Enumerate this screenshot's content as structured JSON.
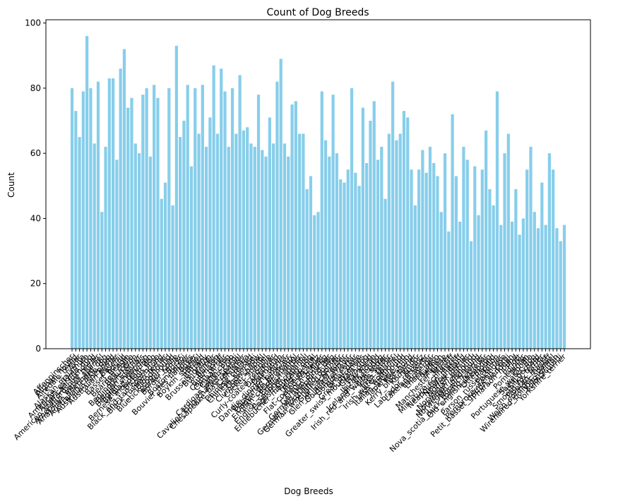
{
  "chart_data": {
    "type": "bar",
    "title": "Count of Dog Breeds",
    "x_label": "Dog Breeds",
    "y_label": "Count",
    "color": "#87ceeb",
    "categories": [
      "Affenpinscher",
      "Afghan_hound",
      "Airedale_terrier",
      "Akita",
      "Alaskan_malamute",
      "American_eskimo_dog",
      "American_foxhound",
      "American_staffordshire_terrier",
      "American_water_spaniel",
      "Anatolian_shepherd_dog",
      "Australian_cattle_dog",
      "Australian_shepherd",
      "Australian_terrier",
      "Basenji",
      "Basset_hound",
      "Beagle",
      "Bearded_collie",
      "Beauceron",
      "Bedlington_terrier",
      "Belgian_malinois",
      "Belgian_sheepdog",
      "Belgian_tervuren",
      "Bernese_mountain_dog",
      "Bichon_frise",
      "Black_and_tan_coonhound",
      "Black_russian_terrier",
      "Bloodhound",
      "Bluetick_coonhound",
      "Border_collie",
      "Border_terrier",
      "Borzoi",
      "Boston_terrier",
      "Bouvier_des_flandres",
      "Boxer",
      "Boykin_spaniel",
      "Briard",
      "Brittany",
      "Brussels_griffon",
      "Bull_terrier",
      "Bulldog",
      "Bullmastiff",
      "Cairn_terrier",
      "Canaan_dog",
      "Cane_corso",
      "Cardigan_welsh_corgi",
      "Cavalier_king_charles_spaniel",
      "Chesapeake_bay_retriever",
      "Chihuahua",
      "Chinese_crested",
      "Chinese_shar-pei",
      "Chow_chow",
      "Clumber_spaniel",
      "Cocker_spaniel",
      "Collie",
      "Curly-coated_retriever",
      "Dachshund",
      "Dalmatian",
      "Dandie_dinmont_terrier",
      "Doberman_pinscher",
      "Dogue_de_bordeaux",
      "English_cocker_spaniel",
      "English_setter",
      "English_springer_spaniel",
      "English_toy_spaniel",
      "Entlebucher_mountain_dog",
      "Field_spaniel",
      "Finnish_spitz",
      "Flat-coated_retriever",
      "French_bulldog",
      "German_pinscher",
      "German_shepherd_dog",
      "German_shorthaired_pointer",
      "German_wirehaired_pointer",
      "Giant_schnauzer",
      "Glen_of_imaal_terrier",
      "Golden_retriever",
      "Gordon_setter",
      "Great_dane",
      "Great_pyrenees",
      "Greater_swiss_mountain_dog",
      "Greyhound",
      "Havanese",
      "Ibizan_hound",
      "Icelandic_sheepdog",
      "Irish_red_and_white_setter",
      "Irish_setter",
      "Irish_terrier",
      "Irish_water_spaniel",
      "Irish_wolfhound",
      "Italian_greyhound",
      "Japanese_chin",
      "Keeshond",
      "Kerry_blue_terrier",
      "Komondor",
      "Kuvasz",
      "Labrador_retriever",
      "Lakeland_terrier",
      "Leonberger",
      "Lhasa_apso",
      "Lowchen",
      "Maltese",
      "Manchester_terrier",
      "Mastiff",
      "Miniature_schnauzer",
      "Neapolitan_mastiff",
      "Newfoundland",
      "Norfolk_terrier",
      "Norwegian_buhund",
      "Norwegian_elkhound",
      "Norwegian_lundehund",
      "Norwich_terrier",
      "Nova_scotia_duck_tolling_retriever",
      "Old_english_sheepdog",
      "Otterhound",
      "Papillon",
      "Parson_russell_terrier",
      "Pekingese",
      "Pembroke_welsh_corgi",
      "Petit_basset_griffon_vendeen",
      "Pharaoh_hound",
      "Plott",
      "Pointer",
      "Pomeranian",
      "Poodle",
      "Portuguese_water_dog",
      "Saint_bernard",
      "Silky_terrier",
      "Smooth_fox_terrier",
      "Tibetan_mastiff",
      "Welsh_springer_spaniel",
      "Wirehaired_pointing_griffon",
      "Xoloitzcuintli",
      "Yorkshire_terrier"
    ],
    "values": [
      80,
      73,
      65,
      79,
      96,
      80,
      63,
      82,
      42,
      62,
      83,
      83,
      58,
      86,
      92,
      74,
      77,
      63,
      60,
      78,
      80,
      59,
      81,
      77,
      46,
      51,
      80,
      44,
      93,
      65,
      70,
      81,
      56,
      80,
      66,
      81,
      62,
      71,
      87,
      66,
      86,
      79,
      62,
      80,
      66,
      84,
      67,
      68,
      63,
      62,
      78,
      61,
      59,
      71,
      63,
      82,
      89,
      63,
      59,
      75,
      76,
      66,
      66,
      49,
      53,
      41,
      42,
      79,
      64,
      59,
      78,
      60,
      52,
      51,
      55,
      80,
      54,
      50,
      74,
      57,
      70,
      76,
      58,
      62,
      46,
      66,
      82,
      64,
      66,
      73,
      71,
      55,
      44,
      55,
      61,
      54,
      62,
      57,
      53,
      42,
      60,
      36,
      72,
      53,
      39,
      62,
      58,
      33,
      56,
      41,
      55,
      67,
      49,
      44,
      79,
      38,
      60,
      66,
      39,
      49,
      35,
      40,
      55,
      62,
      42,
      37,
      51,
      38,
      60,
      55,
      37,
      33,
      38
    ],
    "ylim": [
      0,
      101
    ],
    "yticks": [
      0,
      20,
      40,
      60,
      80,
      100
    ],
    "grid": false
  }
}
